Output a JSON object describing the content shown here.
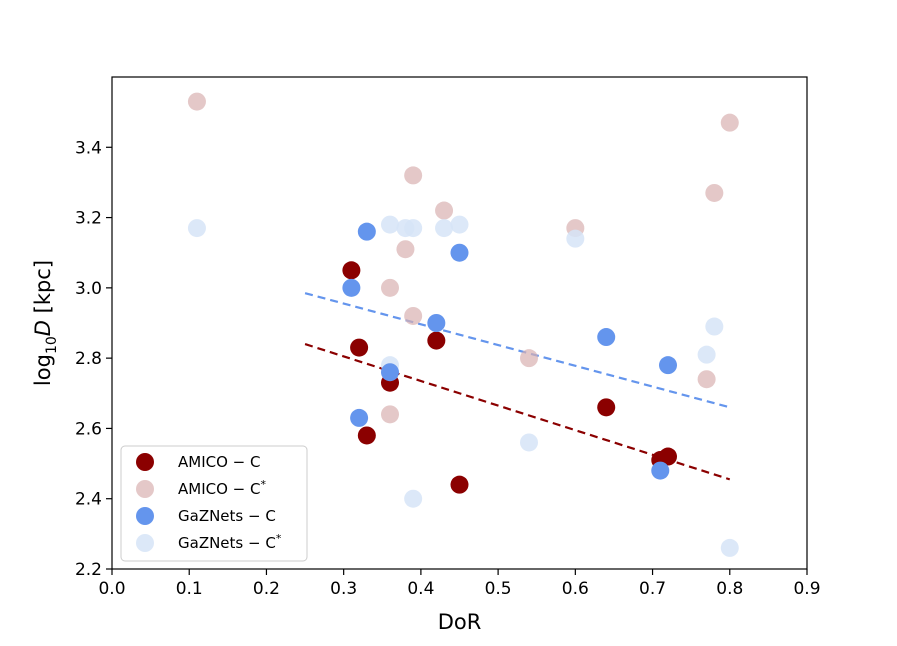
{
  "chart_data": {
    "type": "scatter",
    "title": "",
    "xlabel": "DoR",
    "ylabel_prefix": "log",
    "ylabel_sub": "10",
    "ylabel_var": "D",
    "ylabel_unit": " [kpc]",
    "xlim": [
      0.0,
      0.9
    ],
    "ylim": [
      2.2,
      3.6
    ],
    "xticks": [
      0.0,
      0.1,
      0.2,
      0.3,
      0.4,
      0.5,
      0.6,
      0.7,
      0.8,
      0.9
    ],
    "yticks": [
      2.2,
      2.4,
      2.6,
      2.8,
      3.0,
      3.2,
      3.4
    ],
    "xtick_labels": [
      "0.0",
      "0.1",
      "0.2",
      "0.3",
      "0.4",
      "0.5",
      "0.6",
      "0.7",
      "0.8",
      "0.9"
    ],
    "ytick_labels": [
      "2.2",
      "2.4",
      "2.6",
      "2.8",
      "3.0",
      "3.2",
      "3.4"
    ],
    "grid": false,
    "legend_position": "lower-left",
    "series": [
      {
        "name": "AMICO − C",
        "name_sup": "",
        "color": "#8b0000",
        "opacity": 1.0,
        "points": [
          [
            0.31,
            3.05
          ],
          [
            0.32,
            2.83
          ],
          [
            0.33,
            2.58
          ],
          [
            0.36,
            2.73
          ],
          [
            0.42,
            2.85
          ],
          [
            0.45,
            2.44
          ],
          [
            0.64,
            2.66
          ],
          [
            0.71,
            2.51
          ],
          [
            0.72,
            2.52
          ]
        ]
      },
      {
        "name": "AMICO − C",
        "name_sup": "*",
        "color": "#d8b0b0",
        "opacity": 0.7,
        "points": [
          [
            0.11,
            3.53
          ],
          [
            0.36,
            3.0
          ],
          [
            0.36,
            2.64
          ],
          [
            0.38,
            3.11
          ],
          [
            0.39,
            3.32
          ],
          [
            0.39,
            2.92
          ],
          [
            0.43,
            3.22
          ],
          [
            0.54,
            2.8
          ],
          [
            0.6,
            3.17
          ],
          [
            0.77,
            2.74
          ],
          [
            0.78,
            3.27
          ],
          [
            0.8,
            3.47
          ]
        ]
      },
      {
        "name": "GaZNets − C",
        "name_sup": "",
        "color": "#6495ed",
        "opacity": 1.0,
        "points": [
          [
            0.31,
            3.0
          ],
          [
            0.32,
            2.63
          ],
          [
            0.33,
            3.16
          ],
          [
            0.36,
            2.76
          ],
          [
            0.42,
            2.9
          ],
          [
            0.45,
            3.1
          ],
          [
            0.64,
            2.86
          ],
          [
            0.71,
            2.48
          ],
          [
            0.72,
            2.78
          ]
        ]
      },
      {
        "name": "GaZNets − C",
        "name_sup": "*",
        "color": "#d6e4f7",
        "opacity": 0.85,
        "points": [
          [
            0.11,
            3.17
          ],
          [
            0.36,
            3.18
          ],
          [
            0.36,
            2.78
          ],
          [
            0.38,
            3.17
          ],
          [
            0.39,
            3.17
          ],
          [
            0.39,
            2.4
          ],
          [
            0.43,
            3.17
          ],
          [
            0.45,
            3.18
          ],
          [
            0.54,
            2.56
          ],
          [
            0.6,
            3.14
          ],
          [
            0.77,
            2.81
          ],
          [
            0.78,
            2.89
          ],
          [
            0.8,
            2.26
          ]
        ]
      }
    ],
    "fit_lines": [
      {
        "series": "AMICO − C",
        "color": "#8b0000",
        "x": [
          0.25,
          0.8
        ],
        "y": [
          2.84,
          2.455
        ]
      },
      {
        "series": "GaZNets − C",
        "color": "#6495ed",
        "x": [
          0.25,
          0.8
        ],
        "y": [
          2.985,
          2.66
        ]
      }
    ]
  }
}
